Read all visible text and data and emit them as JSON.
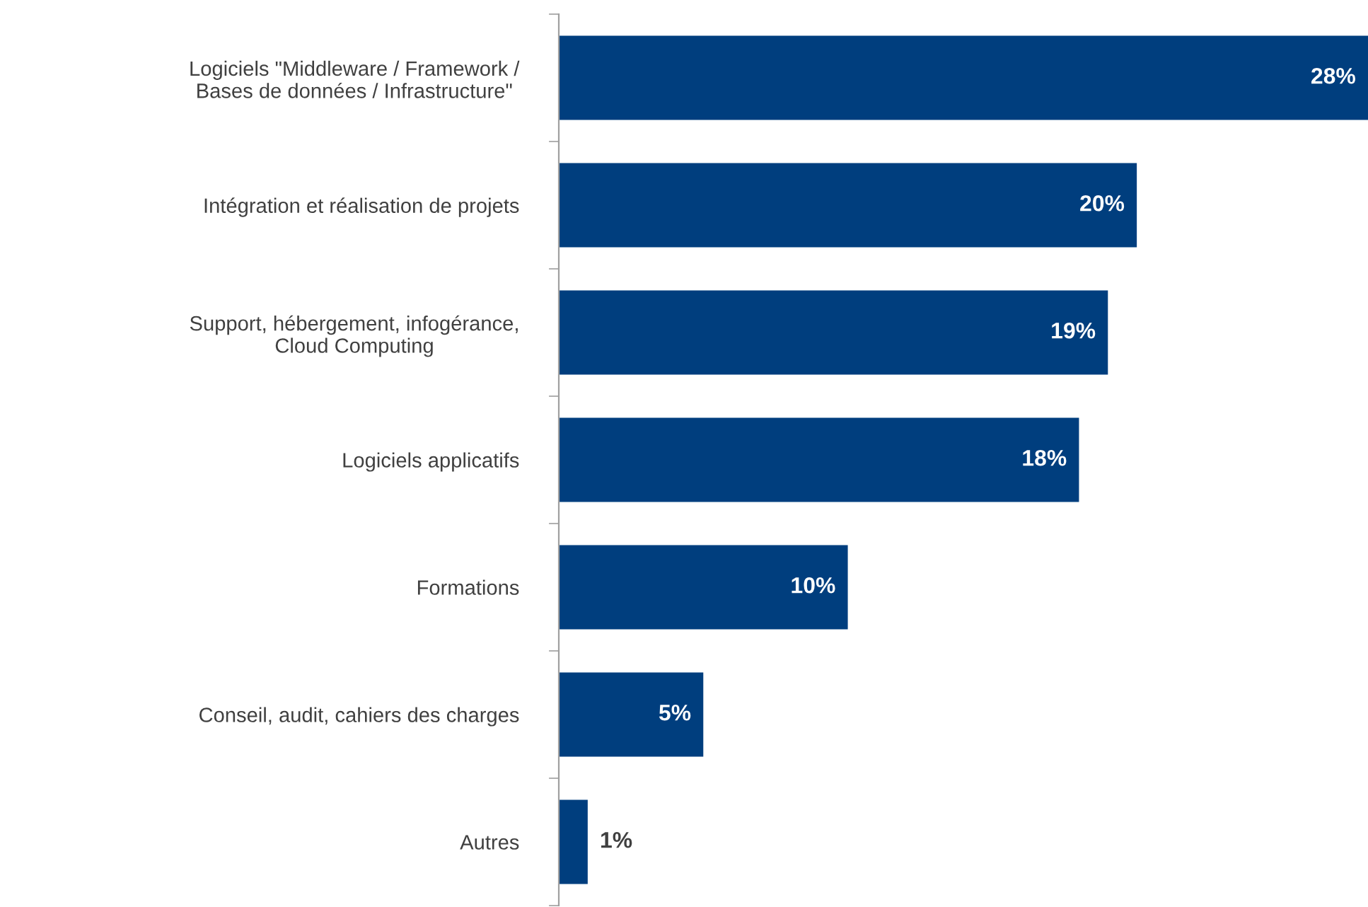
{
  "chart_data": {
    "type": "bar",
    "orientation": "horizontal",
    "categories": [
      "Logiciels \"Middleware / Framework /\nBases de données / Infrastructure\"",
      "Intégration et réalisation de projets",
      "Support, hébergement, infogérance,\nCloud Computing",
      "Logiciels applicatifs",
      "Formations",
      "Conseil, audit, cahiers des charges",
      "Autres"
    ],
    "values": [
      28,
      20,
      19,
      18,
      10,
      5,
      1
    ],
    "value_labels": [
      "28%",
      "20%",
      "19%",
      "18%",
      "10%",
      "5%",
      "1%"
    ],
    "color": "#003e7e",
    "tick_labels": "y",
    "grid": false,
    "legend": false
  }
}
